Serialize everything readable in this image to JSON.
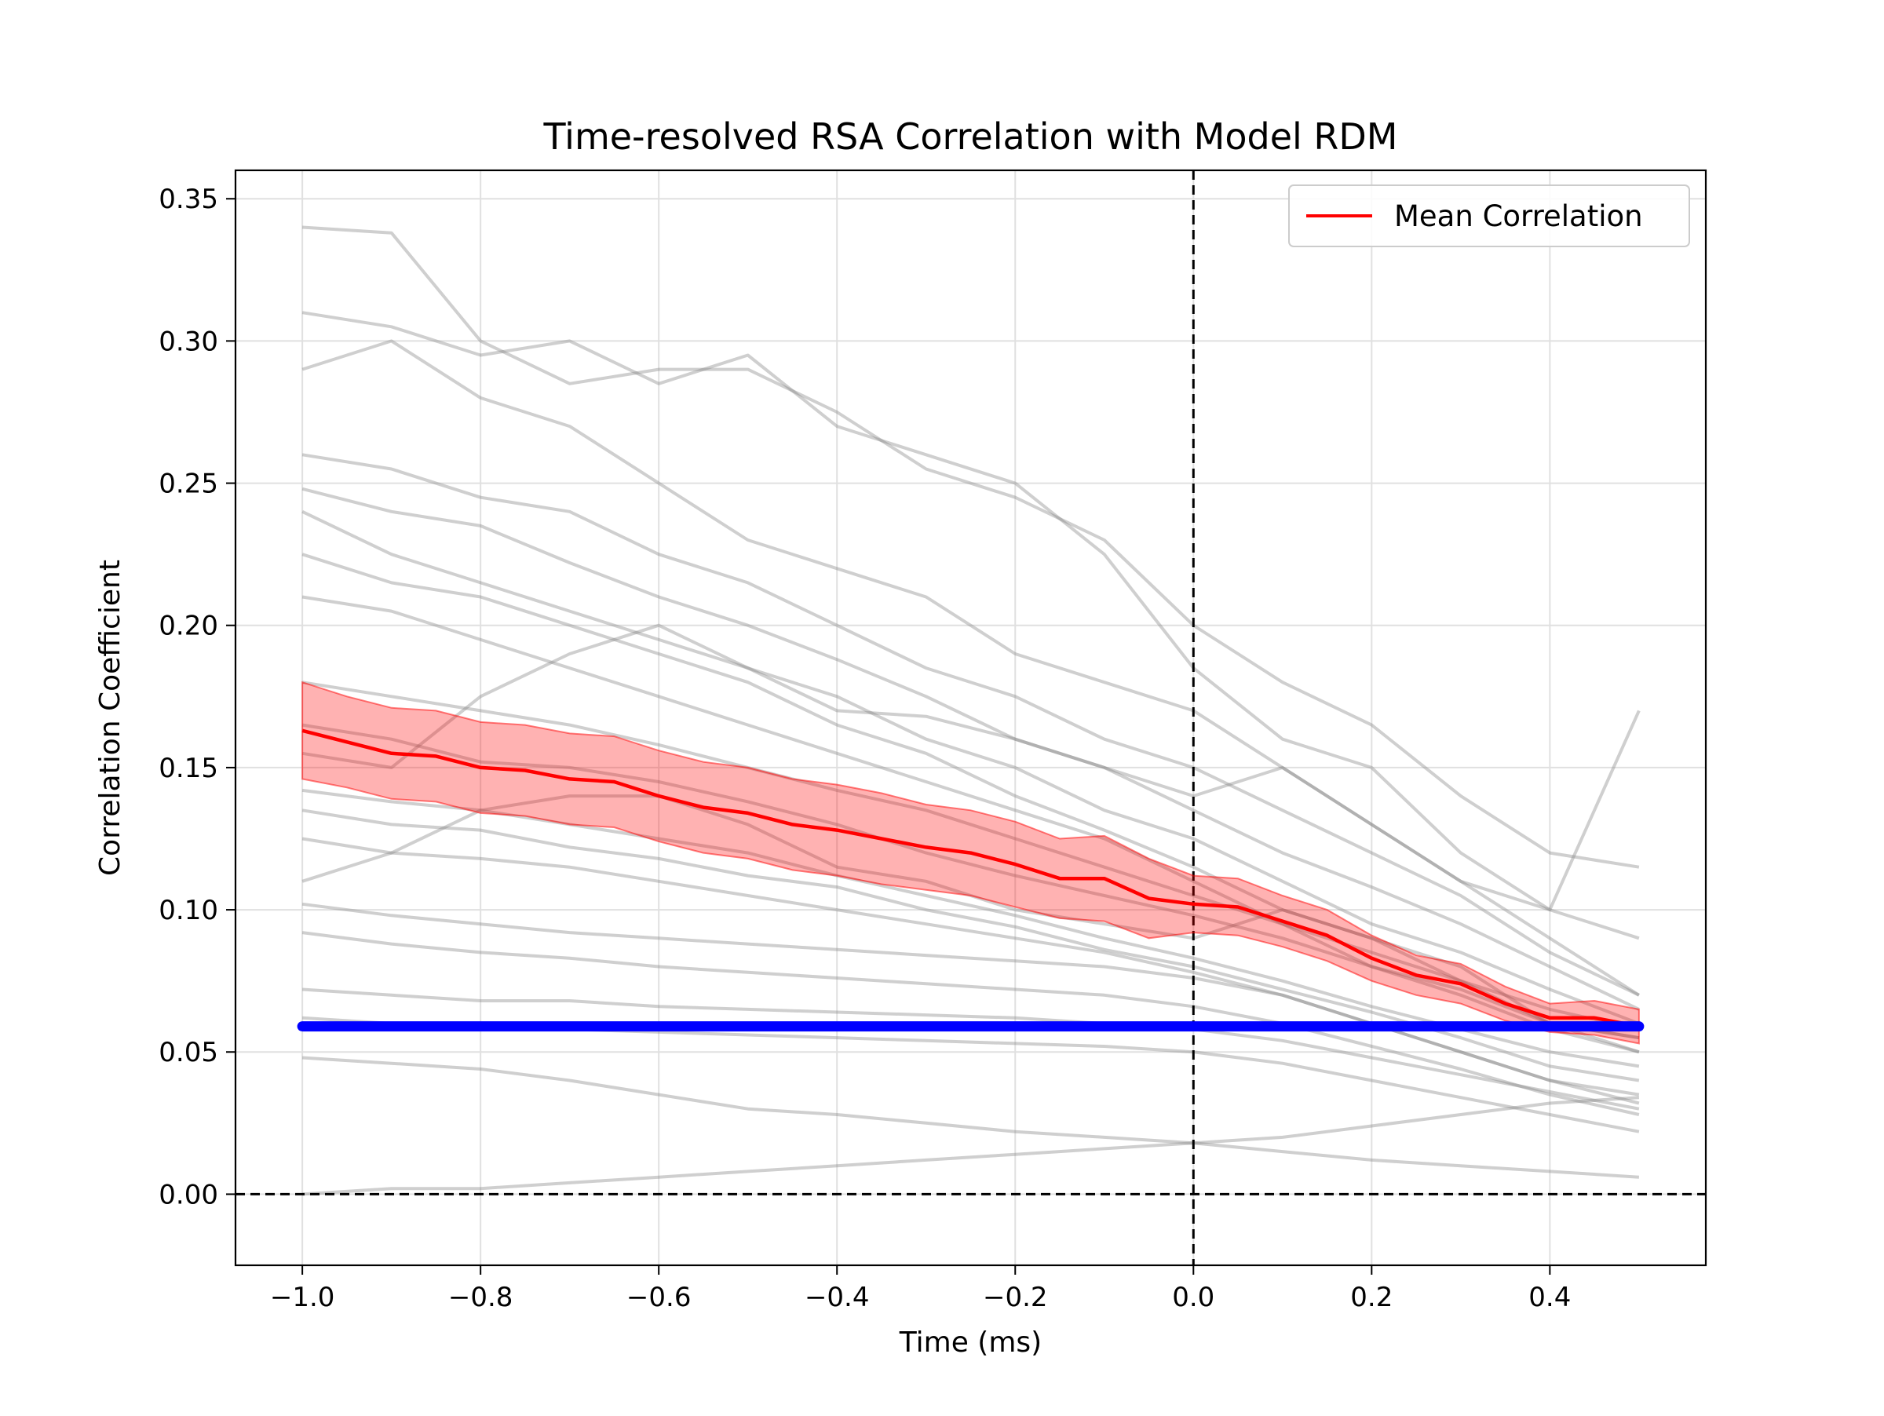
{
  "chart_data": {
    "type": "line",
    "title": "Time-resolved RSA Correlation with Model RDM",
    "xlabel": "Time (ms)",
    "ylabel": "Correlation Coefficient",
    "xlim": [
      -1.075,
      0.575
    ],
    "ylim": [
      -0.025,
      0.36
    ],
    "grid": true,
    "legend": {
      "placement": "top-right",
      "entries": [
        "Mean Correlation"
      ]
    },
    "x_ticks": [
      -1.0,
      -0.8,
      -0.6,
      -0.4,
      -0.2,
      0.0,
      0.2,
      0.4
    ],
    "x_tick_labels": [
      "−1.0",
      "−0.8",
      "−0.6",
      "−0.4",
      "−0.2",
      "0.0",
      "0.2",
      "0.4"
    ],
    "y_ticks": [
      0.0,
      0.05,
      0.1,
      0.15,
      0.2,
      0.25,
      0.3,
      0.35
    ],
    "y_tick_labels": [
      "0.00",
      "0.05",
      "0.10",
      "0.15",
      "0.20",
      "0.25",
      "0.30",
      "0.35"
    ],
    "reference_lines": {
      "vertical_x": 0.0,
      "horizontal_y": 0.0
    },
    "threshold_line": {
      "y": 0.059,
      "x_range": [
        -1.0,
        0.5
      ],
      "color": "#0000ff"
    },
    "colors": {
      "mean": "#ff0000",
      "band": "#ff0000",
      "subjects": "#808080",
      "threshold": "#0000ff"
    },
    "series": [
      {
        "name": "Mean Correlation",
        "x": [
          -1.0,
          -0.95,
          -0.9,
          -0.85,
          -0.8,
          -0.75,
          -0.7,
          -0.65,
          -0.6,
          -0.55,
          -0.5,
          -0.45,
          -0.4,
          -0.35,
          -0.3,
          -0.25,
          -0.2,
          -0.15,
          -0.1,
          -0.05,
          0.0,
          0.05,
          0.1,
          0.15,
          0.2,
          0.25,
          0.3,
          0.35,
          0.4,
          0.45,
          0.5
        ],
        "y": [
          0.163,
          0.159,
          0.155,
          0.154,
          0.15,
          0.149,
          0.146,
          0.145,
          0.14,
          0.136,
          0.134,
          0.13,
          0.128,
          0.125,
          0.122,
          0.12,
          0.116,
          0.111,
          0.111,
          0.104,
          0.102,
          0.101,
          0.096,
          0.091,
          0.083,
          0.077,
          0.074,
          0.067,
          0.062,
          0.062,
          0.059
        ],
        "band_lower": [
          0.146,
          0.143,
          0.139,
          0.138,
          0.134,
          0.133,
          0.13,
          0.129,
          0.124,
          0.12,
          0.118,
          0.114,
          0.112,
          0.109,
          0.107,
          0.105,
          0.101,
          0.097,
          0.096,
          0.09,
          0.092,
          0.091,
          0.087,
          0.082,
          0.075,
          0.07,
          0.067,
          0.061,
          0.057,
          0.056,
          0.053
        ],
        "band_upper": [
          0.18,
          0.175,
          0.171,
          0.17,
          0.166,
          0.165,
          0.162,
          0.161,
          0.156,
          0.152,
          0.15,
          0.146,
          0.144,
          0.141,
          0.137,
          0.135,
          0.131,
          0.125,
          0.126,
          0.118,
          0.112,
          0.111,
          0.105,
          0.1,
          0.091,
          0.084,
          0.081,
          0.073,
          0.067,
          0.068,
          0.065
        ]
      }
    ],
    "subject_series": {
      "x": [
        -1.0,
        -0.9,
        -0.8,
        -0.7,
        -0.6,
        -0.5,
        -0.4,
        -0.3,
        -0.2,
        -0.1,
        0.0,
        0.1,
        0.2,
        0.3,
        0.4,
        0.5
      ],
      "lines": [
        [
          0.34,
          0.338,
          0.3,
          0.285,
          0.29,
          0.29,
          0.275,
          0.255,
          0.245,
          0.23,
          0.2,
          0.18,
          0.165,
          0.14,
          0.12,
          0.115
        ],
        [
          0.31,
          0.305,
          0.295,
          0.3,
          0.285,
          0.295,
          0.27,
          0.26,
          0.25,
          0.225,
          0.185,
          0.16,
          0.15,
          0.12,
          0.1,
          0.09
        ],
        [
          0.29,
          0.3,
          0.28,
          0.27,
          0.25,
          0.23,
          0.22,
          0.21,
          0.19,
          0.18,
          0.17,
          0.15,
          0.13,
          0.11,
          0.09,
          0.07
        ],
        [
          0.26,
          0.255,
          0.245,
          0.24,
          0.225,
          0.215,
          0.2,
          0.185,
          0.175,
          0.16,
          0.15,
          0.135,
          0.12,
          0.105,
          0.085,
          0.07
        ],
        [
          0.248,
          0.24,
          0.235,
          0.222,
          0.21,
          0.2,
          0.188,
          0.175,
          0.16,
          0.15,
          0.135,
          0.12,
          0.108,
          0.095,
          0.08,
          0.065
        ],
        [
          0.24,
          0.225,
          0.215,
          0.205,
          0.195,
          0.185,
          0.175,
          0.16,
          0.15,
          0.135,
          0.125,
          0.11,
          0.095,
          0.085,
          0.072,
          0.06
        ],
        [
          0.225,
          0.215,
          0.21,
          0.2,
          0.19,
          0.18,
          0.165,
          0.155,
          0.14,
          0.128,
          0.115,
          0.1,
          0.09,
          0.075,
          0.06,
          0.055
        ],
        [
          0.21,
          0.205,
          0.195,
          0.185,
          0.175,
          0.165,
          0.155,
          0.145,
          0.135,
          0.125,
          0.11,
          0.095,
          0.08,
          0.07,
          0.058,
          0.05
        ],
        [
          0.18,
          0.175,
          0.17,
          0.165,
          0.158,
          0.15,
          0.142,
          0.135,
          0.125,
          0.115,
          0.105,
          0.095,
          0.085,
          0.075,
          0.065,
          0.058
        ],
        [
          0.165,
          0.16,
          0.152,
          0.15,
          0.145,
          0.138,
          0.13,
          0.12,
          0.112,
          0.105,
          0.098,
          0.09,
          0.08,
          0.072,
          0.06,
          0.055
        ],
        [
          0.142,
          0.138,
          0.135,
          0.13,
          0.125,
          0.12,
          0.112,
          0.105,
          0.098,
          0.09,
          0.083,
          0.075,
          0.066,
          0.058,
          0.05,
          0.045
        ],
        [
          0.135,
          0.13,
          0.128,
          0.122,
          0.118,
          0.112,
          0.108,
          0.1,
          0.094,
          0.086,
          0.08,
          0.072,
          0.064,
          0.055,
          0.045,
          0.04
        ],
        [
          0.125,
          0.12,
          0.118,
          0.115,
          0.11,
          0.105,
          0.1,
          0.095,
          0.09,
          0.085,
          0.078,
          0.07,
          0.06,
          0.05,
          0.04,
          0.035
        ],
        [
          0.102,
          0.098,
          0.095,
          0.092,
          0.09,
          0.088,
          0.086,
          0.084,
          0.082,
          0.08,
          0.076,
          0.07,
          0.06,
          0.05,
          0.04,
          0.032
        ],
        [
          0.092,
          0.088,
          0.085,
          0.083,
          0.08,
          0.078,
          0.076,
          0.074,
          0.072,
          0.07,
          0.066,
          0.06,
          0.052,
          0.044,
          0.035,
          0.028
        ],
        [
          0.072,
          0.07,
          0.068,
          0.068,
          0.066,
          0.065,
          0.064,
          0.063,
          0.062,
          0.06,
          0.058,
          0.054,
          0.048,
          0.042,
          0.036,
          0.03
        ],
        [
          0.062,
          0.06,
          0.058,
          0.058,
          0.057,
          0.056,
          0.055,
          0.054,
          0.053,
          0.052,
          0.05,
          0.046,
          0.04,
          0.034,
          0.028,
          0.022
        ],
        [
          0.048,
          0.046,
          0.044,
          0.04,
          0.035,
          0.03,
          0.028,
          0.025,
          0.022,
          0.02,
          0.018,
          0.015,
          0.012,
          0.01,
          0.008,
          0.006
        ],
        [
          0.0,
          0.002,
          0.002,
          0.004,
          0.006,
          0.008,
          0.01,
          0.012,
          0.014,
          0.016,
          0.018,
          0.02,
          0.024,
          0.028,
          0.032,
          0.034
        ],
        [
          0.155,
          0.15,
          0.175,
          0.19,
          0.2,
          0.185,
          0.17,
          0.168,
          0.16,
          0.15,
          0.14,
          0.15,
          0.13,
          0.11,
          0.1,
          0.17
        ],
        [
          0.11,
          0.12,
          0.135,
          0.14,
          0.14,
          0.13,
          0.115,
          0.11,
          0.1,
          0.095,
          0.09,
          0.1,
          0.09,
          0.08,
          0.06,
          0.05
        ]
      ]
    }
  }
}
